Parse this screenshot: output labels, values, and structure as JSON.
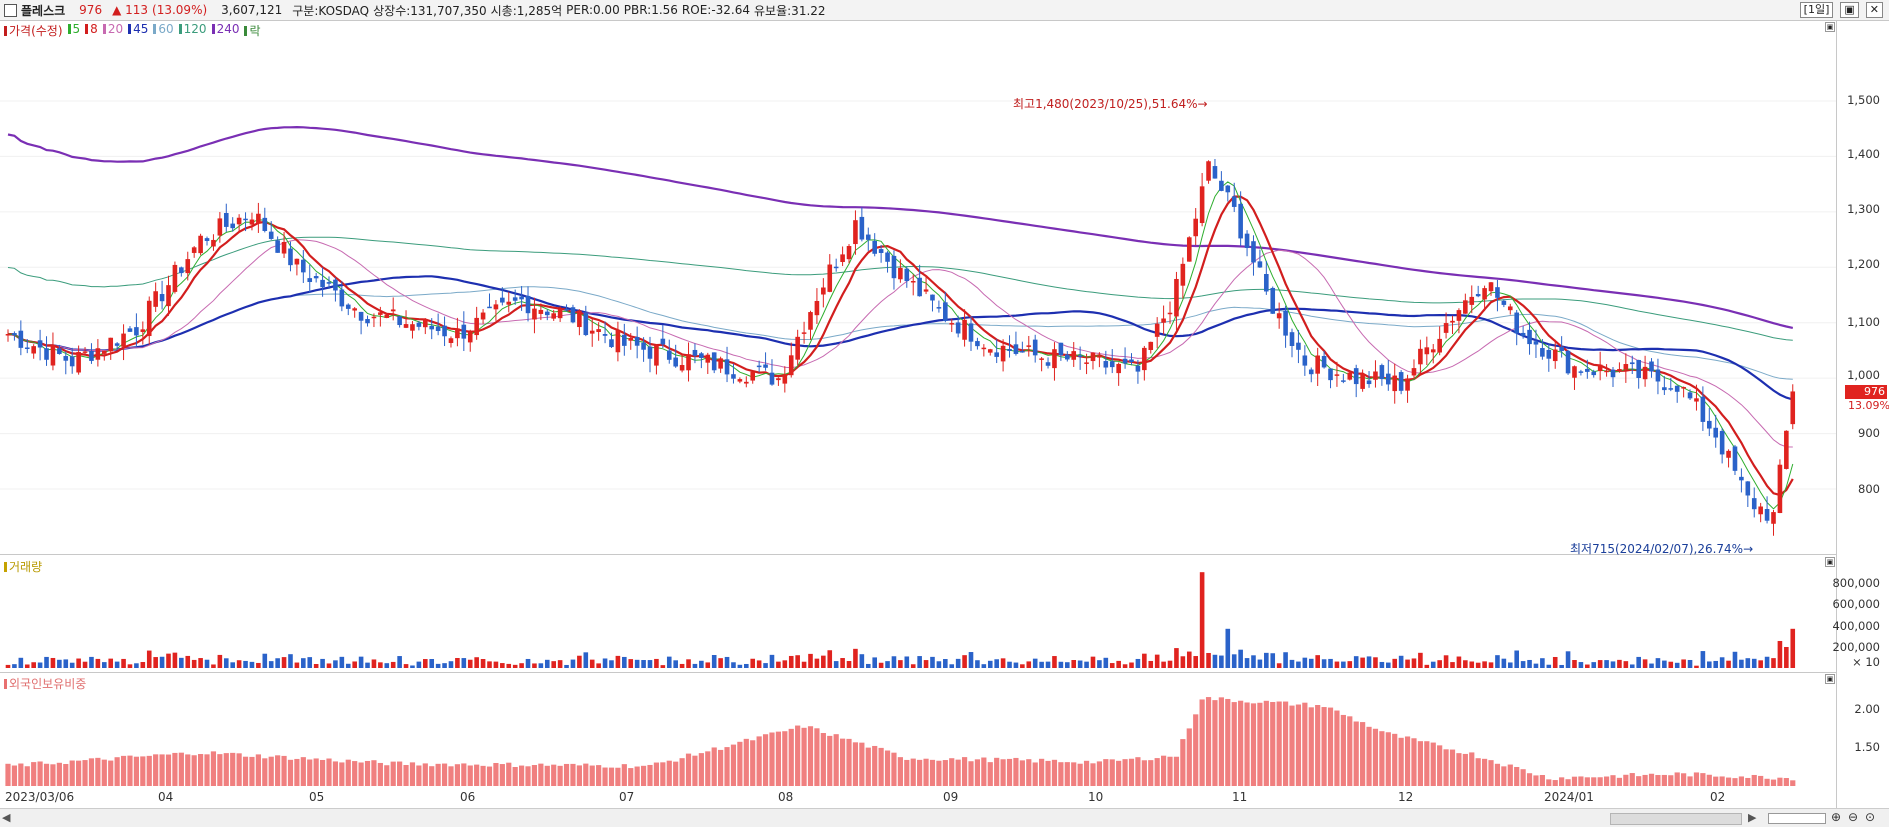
{
  "header": {
    "stock_name": "플레스크",
    "price": "976",
    "change": "▲ 113",
    "change_pct": "(13.09%)",
    "volume": "3,607,121",
    "market": "구분:KOSDAQ",
    "shares": "상장수:131,707,350",
    "market_cap": "시총:1,285억",
    "per": "PER:0.00",
    "pbr": "PBR:1.56",
    "roe": "ROE:-32.64",
    "retention": "유보율:31.22",
    "period_button": "[1일]",
    "window_buttons": [
      "▣",
      "✕"
    ]
  },
  "price_panel": {
    "legend": [
      {
        "label": "가격(수정)",
        "color": "#c21d1d"
      },
      {
        "label": "5",
        "color": "#2fae2f"
      },
      {
        "label": "8",
        "color": "#d21e1e"
      },
      {
        "label": "20",
        "color": "#c76ab1"
      },
      {
        "label": "45",
        "color": "#1d2fb0"
      },
      {
        "label": "60",
        "color": "#7aa9c8"
      },
      {
        "label": "120",
        "color": "#3b9c7c"
      },
      {
        "label": "240",
        "color": "#7a2fb4"
      },
      {
        "label": "락",
        "color": "#3a8a3a"
      }
    ],
    "y_ticks": [
      "1,500",
      "1,400",
      "1,300",
      "1,200",
      "1,100",
      "1,000",
      "900",
      "800"
    ],
    "high_annotation": "최고1,480(2023/10/25),51.64%→",
    "low_annotation": "최저715(2024/02/07),26.74%→",
    "current_price_tag": "976",
    "current_pct_tag": "13.09%"
  },
  "volume_panel": {
    "title": "거래량",
    "y_ticks": [
      "800,000",
      "600,000",
      "400,000",
      "200,000"
    ],
    "unit": "× 10"
  },
  "foreign_panel": {
    "title": "외국인보유비중",
    "y_ticks": [
      "2.00",
      "1.50"
    ]
  },
  "x_axis": {
    "labels": [
      "2023/03/06",
      "04",
      "05",
      "06",
      "07",
      "08",
      "09",
      "10",
      "11",
      "12",
      "2024/01",
      "02"
    ]
  },
  "colors": {
    "up": "#e0231f",
    "down": "#2a62c9",
    "ma5": "#2fae2f",
    "ma8": "#d21e1e",
    "ma20": "#c76ab1",
    "ma45": "#1d2fb0",
    "ma60": "#7aa9c8",
    "ma120": "#3b9c7c",
    "ma240": "#7a2fb4",
    "foreign": "#f07f7f"
  },
  "chart_data": {
    "type": "candlestick",
    "x_start": "2023/03/06",
    "x_end": "2024/02/14",
    "price_range": [
      715,
      1480
    ],
    "high": {
      "value": 1480,
      "date": "2023/10/25"
    },
    "low": {
      "value": 715,
      "date": "2024/02/07"
    },
    "last_close": 976,
    "series_anchor_closes": [
      [
        0,
        1080
      ],
      [
        10,
        1030
      ],
      [
        20,
        1090
      ],
      [
        30,
        1250
      ],
      [
        38,
        1300
      ],
      [
        45,
        1200
      ],
      [
        55,
        1120
      ],
      [
        62,
        1100
      ],
      [
        70,
        1080
      ],
      [
        80,
        1140
      ],
      [
        88,
        1110
      ],
      [
        96,
        1060
      ],
      [
        104,
        1040
      ],
      [
        112,
        1020
      ],
      [
        120,
        1000
      ],
      [
        126,
        1150
      ],
      [
        132,
        1280
      ],
      [
        138,
        1200
      ],
      [
        145,
        1120
      ],
      [
        153,
        1060
      ],
      [
        160,
        1040
      ],
      [
        168,
        1030
      ],
      [
        176,
        1010
      ],
      [
        182,
        1160
      ],
      [
        187,
        1380
      ],
      [
        191,
        1300
      ],
      [
        196,
        1150
      ],
      [
        202,
        1030
      ],
      [
        210,
        1000
      ],
      [
        217,
        990
      ],
      [
        224,
        1100
      ],
      [
        230,
        1180
      ],
      [
        236,
        1080
      ],
      [
        244,
        1020
      ],
      [
        252,
        1010
      ],
      [
        260,
        990
      ],
      [
        266,
        900
      ],
      [
        271,
        780
      ],
      [
        275,
        750
      ],
      [
        278,
        976
      ]
    ],
    "volume_axis": [
      0,
      900000
    ],
    "foreign_ratio_axis": [
      1.2,
      2.4
    ],
    "foreign_ratio_anchors": [
      [
        0,
        1.45
      ],
      [
        30,
        1.62
      ],
      [
        60,
        1.48
      ],
      [
        100,
        1.45
      ],
      [
        124,
        1.95
      ],
      [
        140,
        1.55
      ],
      [
        170,
        1.5
      ],
      [
        182,
        1.58
      ],
      [
        186,
        2.3
      ],
      [
        205,
        2.2
      ],
      [
        215,
        1.85
      ],
      [
        228,
        1.6
      ],
      [
        240,
        1.3
      ],
      [
        260,
        1.35
      ],
      [
        278,
        1.3
      ]
    ]
  }
}
